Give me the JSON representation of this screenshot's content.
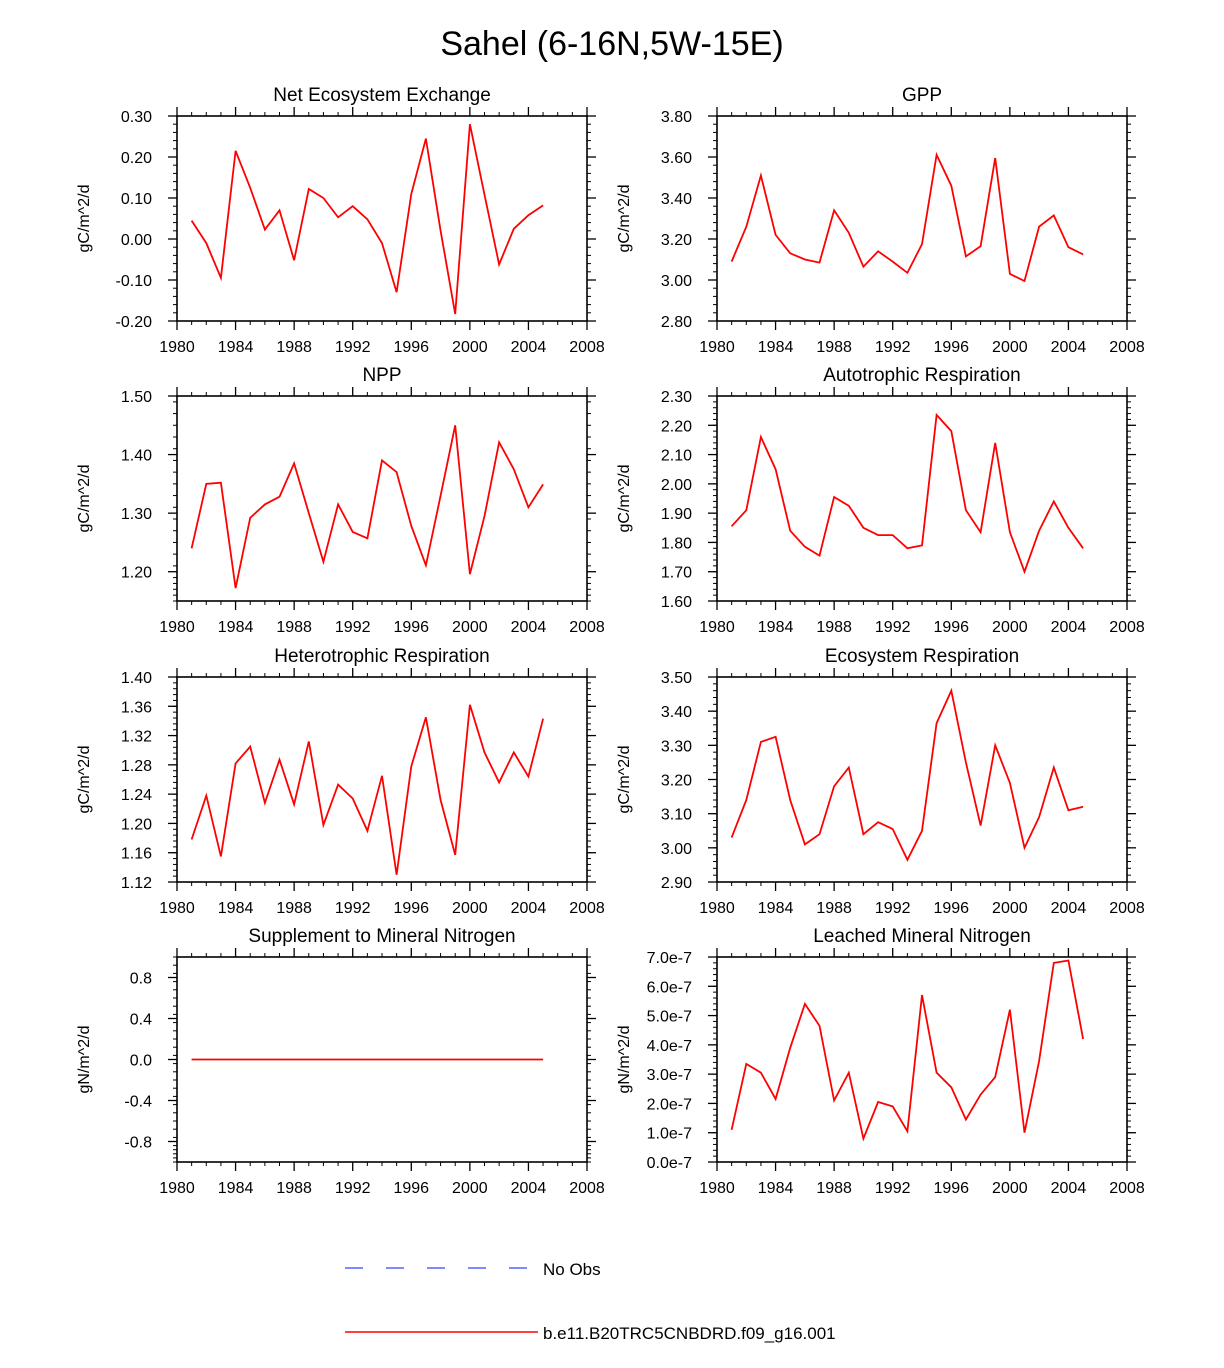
{
  "figure_title": "Sahel (6-16N,5W-15E)",
  "colors": {
    "model": "#ff0000",
    "obs": "#3344ff",
    "axis": "#000000"
  },
  "legend": [
    {
      "label": "No Obs",
      "style": "dashed",
      "color": "#3344ff"
    },
    {
      "label": "b.e11.B20TRC5CNBDRD.f09_g16.001",
      "style": "solid",
      "color": "#ff0000"
    }
  ],
  "chart_data": [
    {
      "type": "line",
      "title": "Net Ecosystem Exchange",
      "ylabel": "gC/m^2/d",
      "xlim": [
        1980,
        2008
      ],
      "ylim": [
        -0.2,
        0.3
      ],
      "xticks": [
        1980,
        1984,
        1988,
        1992,
        1996,
        2000,
        2004,
        2008
      ],
      "xtick_labels": [
        "1980",
        "1984",
        "1988",
        "1992",
        "1996",
        "2000",
        "2004",
        "2008"
      ],
      "yticks": [
        -0.2,
        -0.1,
        0.0,
        0.1,
        0.2,
        0.3
      ],
      "ytick_labels": [
        "-0.20",
        "-0.10",
        "0.00",
        "0.10",
        "0.20",
        "0.30"
      ],
      "x": [
        1981,
        1982,
        1983,
        1984,
        1985,
        1986,
        1987,
        1988,
        1989,
        1990,
        1991,
        1992,
        1993,
        1994,
        1995,
        1996,
        1997,
        1998,
        1999,
        2000,
        2001,
        2002,
        2003,
        2004,
        2005
      ],
      "values": [
        0.045,
        -0.01,
        -0.095,
        0.215,
        0.125,
        0.023,
        0.07,
        -0.052,
        0.122,
        0.1,
        0.053,
        0.08,
        0.048,
        -0.01,
        -0.13,
        0.11,
        0.245,
        0.02,
        -0.183,
        0.28,
        0.108,
        -0.062,
        0.025,
        0.058,
        0.082
      ]
    },
    {
      "type": "line",
      "title": "GPP",
      "ylabel": "gC/m^2/d",
      "xlim": [
        1980,
        2008
      ],
      "ylim": [
        2.8,
        3.8
      ],
      "xticks": [
        1980,
        1984,
        1988,
        1992,
        1996,
        2000,
        2004,
        2008
      ],
      "xtick_labels": [
        "1980",
        "1984",
        "1988",
        "1992",
        "1996",
        "2000",
        "2004",
        "2008"
      ],
      "yticks": [
        2.8,
        3.0,
        3.2,
        3.4,
        3.6,
        3.8
      ],
      "ytick_labels": [
        "2.80",
        "3.00",
        "3.20",
        "3.40",
        "3.60",
        "3.80"
      ],
      "x": [
        1981,
        1982,
        1983,
        1984,
        1985,
        1986,
        1987,
        1988,
        1989,
        1990,
        1991,
        1992,
        1993,
        1994,
        1995,
        1996,
        1997,
        1998,
        1999,
        2000,
        2001,
        2002,
        2003,
        2004,
        2005
      ],
      "values": [
        3.09,
        3.26,
        3.51,
        3.22,
        3.13,
        3.1,
        3.085,
        3.34,
        3.23,
        3.065,
        3.14,
        3.09,
        3.035,
        3.175,
        3.61,
        3.46,
        3.115,
        3.165,
        3.595,
        3.03,
        2.995,
        3.26,
        3.315,
        3.16,
        3.125
      ]
    },
    {
      "type": "line",
      "title": "NPP",
      "ylabel": "gC/m^2/d",
      "xlim": [
        1980,
        2008
      ],
      "ylim": [
        1.15,
        1.5
      ],
      "xticks": [
        1980,
        1984,
        1988,
        1992,
        1996,
        2000,
        2004,
        2008
      ],
      "xtick_labels": [
        "1980",
        "1984",
        "1988",
        "1992",
        "1996",
        "2000",
        "2004",
        "2008"
      ],
      "yticks": [
        1.2,
        1.3,
        1.4,
        1.5
      ],
      "ytick_labels": [
        "1.20",
        "1.30",
        "1.40",
        "1.50"
      ],
      "x": [
        1981,
        1982,
        1983,
        1984,
        1985,
        1986,
        1987,
        1988,
        1989,
        1990,
        1991,
        1992,
        1993,
        1994,
        1995,
        1996,
        1997,
        1998,
        1999,
        2000,
        2001,
        2002,
        2003,
        2004,
        2005
      ],
      "values": [
        1.24,
        1.35,
        1.352,
        1.172,
        1.292,
        1.315,
        1.328,
        1.385,
        1.3,
        1.217,
        1.315,
        1.268,
        1.257,
        1.39,
        1.37,
        1.278,
        1.211,
        1.33,
        1.45,
        1.196,
        1.295,
        1.421,
        1.375,
        1.31,
        1.349
      ]
    },
    {
      "type": "line",
      "title": "Autotrophic Respiration",
      "ylabel": "gC/m^2/d",
      "xlim": [
        1980,
        2008
      ],
      "ylim": [
        1.6,
        2.3
      ],
      "xticks": [
        1980,
        1984,
        1988,
        1992,
        1996,
        2000,
        2004,
        2008
      ],
      "xtick_labels": [
        "1980",
        "1984",
        "1988",
        "1992",
        "1996",
        "2000",
        "2004",
        "2008"
      ],
      "yticks": [
        1.6,
        1.7,
        1.8,
        1.9,
        2.0,
        2.1,
        2.2,
        2.3
      ],
      "ytick_labels": [
        "1.60",
        "1.70",
        "1.80",
        "1.90",
        "2.00",
        "2.10",
        "2.20",
        "2.30"
      ],
      "x": [
        1981,
        1982,
        1983,
        1984,
        1985,
        1986,
        1987,
        1988,
        1989,
        1990,
        1991,
        1992,
        1993,
        1994,
        1995,
        1996,
        1997,
        1998,
        1999,
        2000,
        2001,
        2002,
        2003,
        2004,
        2005
      ],
      "values": [
        1.855,
        1.91,
        2.16,
        2.05,
        1.84,
        1.785,
        1.755,
        1.955,
        1.925,
        1.85,
        1.825,
        1.825,
        1.78,
        1.79,
        2.235,
        2.18,
        1.91,
        1.835,
        2.14,
        1.835,
        1.7,
        1.84,
        1.94,
        1.85,
        1.78
      ]
    },
    {
      "type": "line",
      "title": "Heterotrophic Respiration",
      "ylabel": "gC/m^2/d",
      "xlim": [
        1980,
        2008
      ],
      "ylim": [
        1.12,
        1.4
      ],
      "xticks": [
        1980,
        1984,
        1988,
        1992,
        1996,
        2000,
        2004,
        2008
      ],
      "xtick_labels": [
        "1980",
        "1984",
        "1988",
        "1992",
        "1996",
        "2000",
        "2004",
        "2008"
      ],
      "yticks": [
        1.12,
        1.16,
        1.2,
        1.24,
        1.28,
        1.32,
        1.36,
        1.4
      ],
      "ytick_labels": [
        "1.12",
        "1.16",
        "1.20",
        "1.24",
        "1.28",
        "1.32",
        "1.36",
        "1.40"
      ],
      "x": [
        1981,
        1982,
        1983,
        1984,
        1985,
        1986,
        1987,
        1988,
        1989,
        1990,
        1991,
        1992,
        1993,
        1994,
        1995,
        1996,
        1997,
        1998,
        1999,
        2000,
        2001,
        2002,
        2003,
        2004,
        2005
      ],
      "values": [
        1.178,
        1.238,
        1.155,
        1.282,
        1.305,
        1.228,
        1.287,
        1.226,
        1.312,
        1.198,
        1.253,
        1.234,
        1.19,
        1.265,
        1.13,
        1.278,
        1.345,
        1.232,
        1.157,
        1.362,
        1.297,
        1.256,
        1.297,
        1.264,
        1.343
      ]
    },
    {
      "type": "line",
      "title": "Ecosystem Respiration",
      "ylabel": "gC/m^2/d",
      "xlim": [
        1980,
        2008
      ],
      "ylim": [
        2.9,
        3.5
      ],
      "xticks": [
        1980,
        1984,
        1988,
        1992,
        1996,
        2000,
        2004,
        2008
      ],
      "xtick_labels": [
        "1980",
        "1984",
        "1988",
        "1992",
        "1996",
        "2000",
        "2004",
        "2008"
      ],
      "yticks": [
        2.9,
        3.0,
        3.1,
        3.2,
        3.3,
        3.4,
        3.5
      ],
      "ytick_labels": [
        "2.90",
        "3.00",
        "3.10",
        "3.20",
        "3.30",
        "3.40",
        "3.50"
      ],
      "x": [
        1981,
        1982,
        1983,
        1984,
        1985,
        1986,
        1987,
        1988,
        1989,
        1990,
        1991,
        1992,
        1993,
        1994,
        1995,
        1996,
        1997,
        1998,
        1999,
        2000,
        2001,
        2002,
        2003,
        2004,
        2005
      ],
      "values": [
        3.03,
        3.14,
        3.31,
        3.325,
        3.14,
        3.01,
        3.04,
        3.18,
        3.235,
        3.04,
        3.075,
        3.055,
        2.965,
        3.05,
        3.365,
        3.46,
        3.25,
        3.065,
        3.3,
        3.19,
        3.0,
        3.09,
        3.235,
        3.11,
        3.12
      ]
    },
    {
      "type": "line",
      "title": "Supplement to Mineral Nitrogen",
      "ylabel": "gN/m^2/d",
      "xlim": [
        1980,
        2008
      ],
      "ylim": [
        -1.0,
        1.0
      ],
      "xticks": [
        1980,
        1984,
        1988,
        1992,
        1996,
        2000,
        2004,
        2008
      ],
      "xtick_labels": [
        "1980",
        "1984",
        "1988",
        "1992",
        "1996",
        "2000",
        "2004",
        "2008"
      ],
      "yticks": [
        -0.8,
        -0.4,
        0.0,
        0.4,
        0.8
      ],
      "ytick_labels": [
        "-0.8",
        "-0.4",
        "0.0",
        "0.4",
        "0.8"
      ],
      "x": [
        1981,
        1982,
        1983,
        1984,
        1985,
        1986,
        1987,
        1988,
        1989,
        1990,
        1991,
        1992,
        1993,
        1994,
        1995,
        1996,
        1997,
        1998,
        1999,
        2000,
        2001,
        2002,
        2003,
        2004,
        2005
      ],
      "values": [
        0,
        0,
        0,
        0,
        0,
        0,
        0,
        0,
        0,
        0,
        0,
        0,
        0,
        0,
        0,
        0,
        0,
        0,
        0,
        0,
        0,
        0,
        0,
        0,
        0
      ]
    },
    {
      "type": "line",
      "title": "Leached Mineral Nitrogen",
      "ylabel": "gN/m^2/d",
      "xlim": [
        1980,
        2008
      ],
      "ylim": [
        0.0,
        7e-07
      ],
      "xticks": [
        1980,
        1984,
        1988,
        1992,
        1996,
        2000,
        2004,
        2008
      ],
      "xtick_labels": [
        "1980",
        "1984",
        "1988",
        "1992",
        "1996",
        "2000",
        "2004",
        "2008"
      ],
      "yticks": [
        0,
        1e-07,
        2e-07,
        3e-07,
        4e-07,
        5e-07,
        6e-07,
        7e-07
      ],
      "ytick_labels": [
        "0.0e-7",
        "1.0e-7",
        "2.0e-7",
        "3.0e-7",
        "4.0e-7",
        "5.0e-7",
        "6.0e-7",
        "7.0e-7"
      ],
      "x": [
        1981,
        1982,
        1983,
        1984,
        1985,
        1986,
        1987,
        1988,
        1989,
        1990,
        1991,
        1992,
        1993,
        1994,
        1995,
        1996,
        1997,
        1998,
        1999,
        2000,
        2001,
        2002,
        2003,
        2004,
        2005
      ],
      "values": [
        1.1e-07,
        3.35e-07,
        3.05e-07,
        2.15e-07,
        3.9e-07,
        5.4e-07,
        4.65e-07,
        2.1e-07,
        3.05e-07,
        8e-08,
        2.05e-07,
        1.9e-07,
        1.05e-07,
        5.7e-07,
        3.05e-07,
        2.55e-07,
        1.45e-07,
        2.3e-07,
        2.9e-07,
        5.2e-07,
        1e-07,
        3.45e-07,
        6.8e-07,
        6.88e-07,
        4.2e-07
      ]
    }
  ]
}
